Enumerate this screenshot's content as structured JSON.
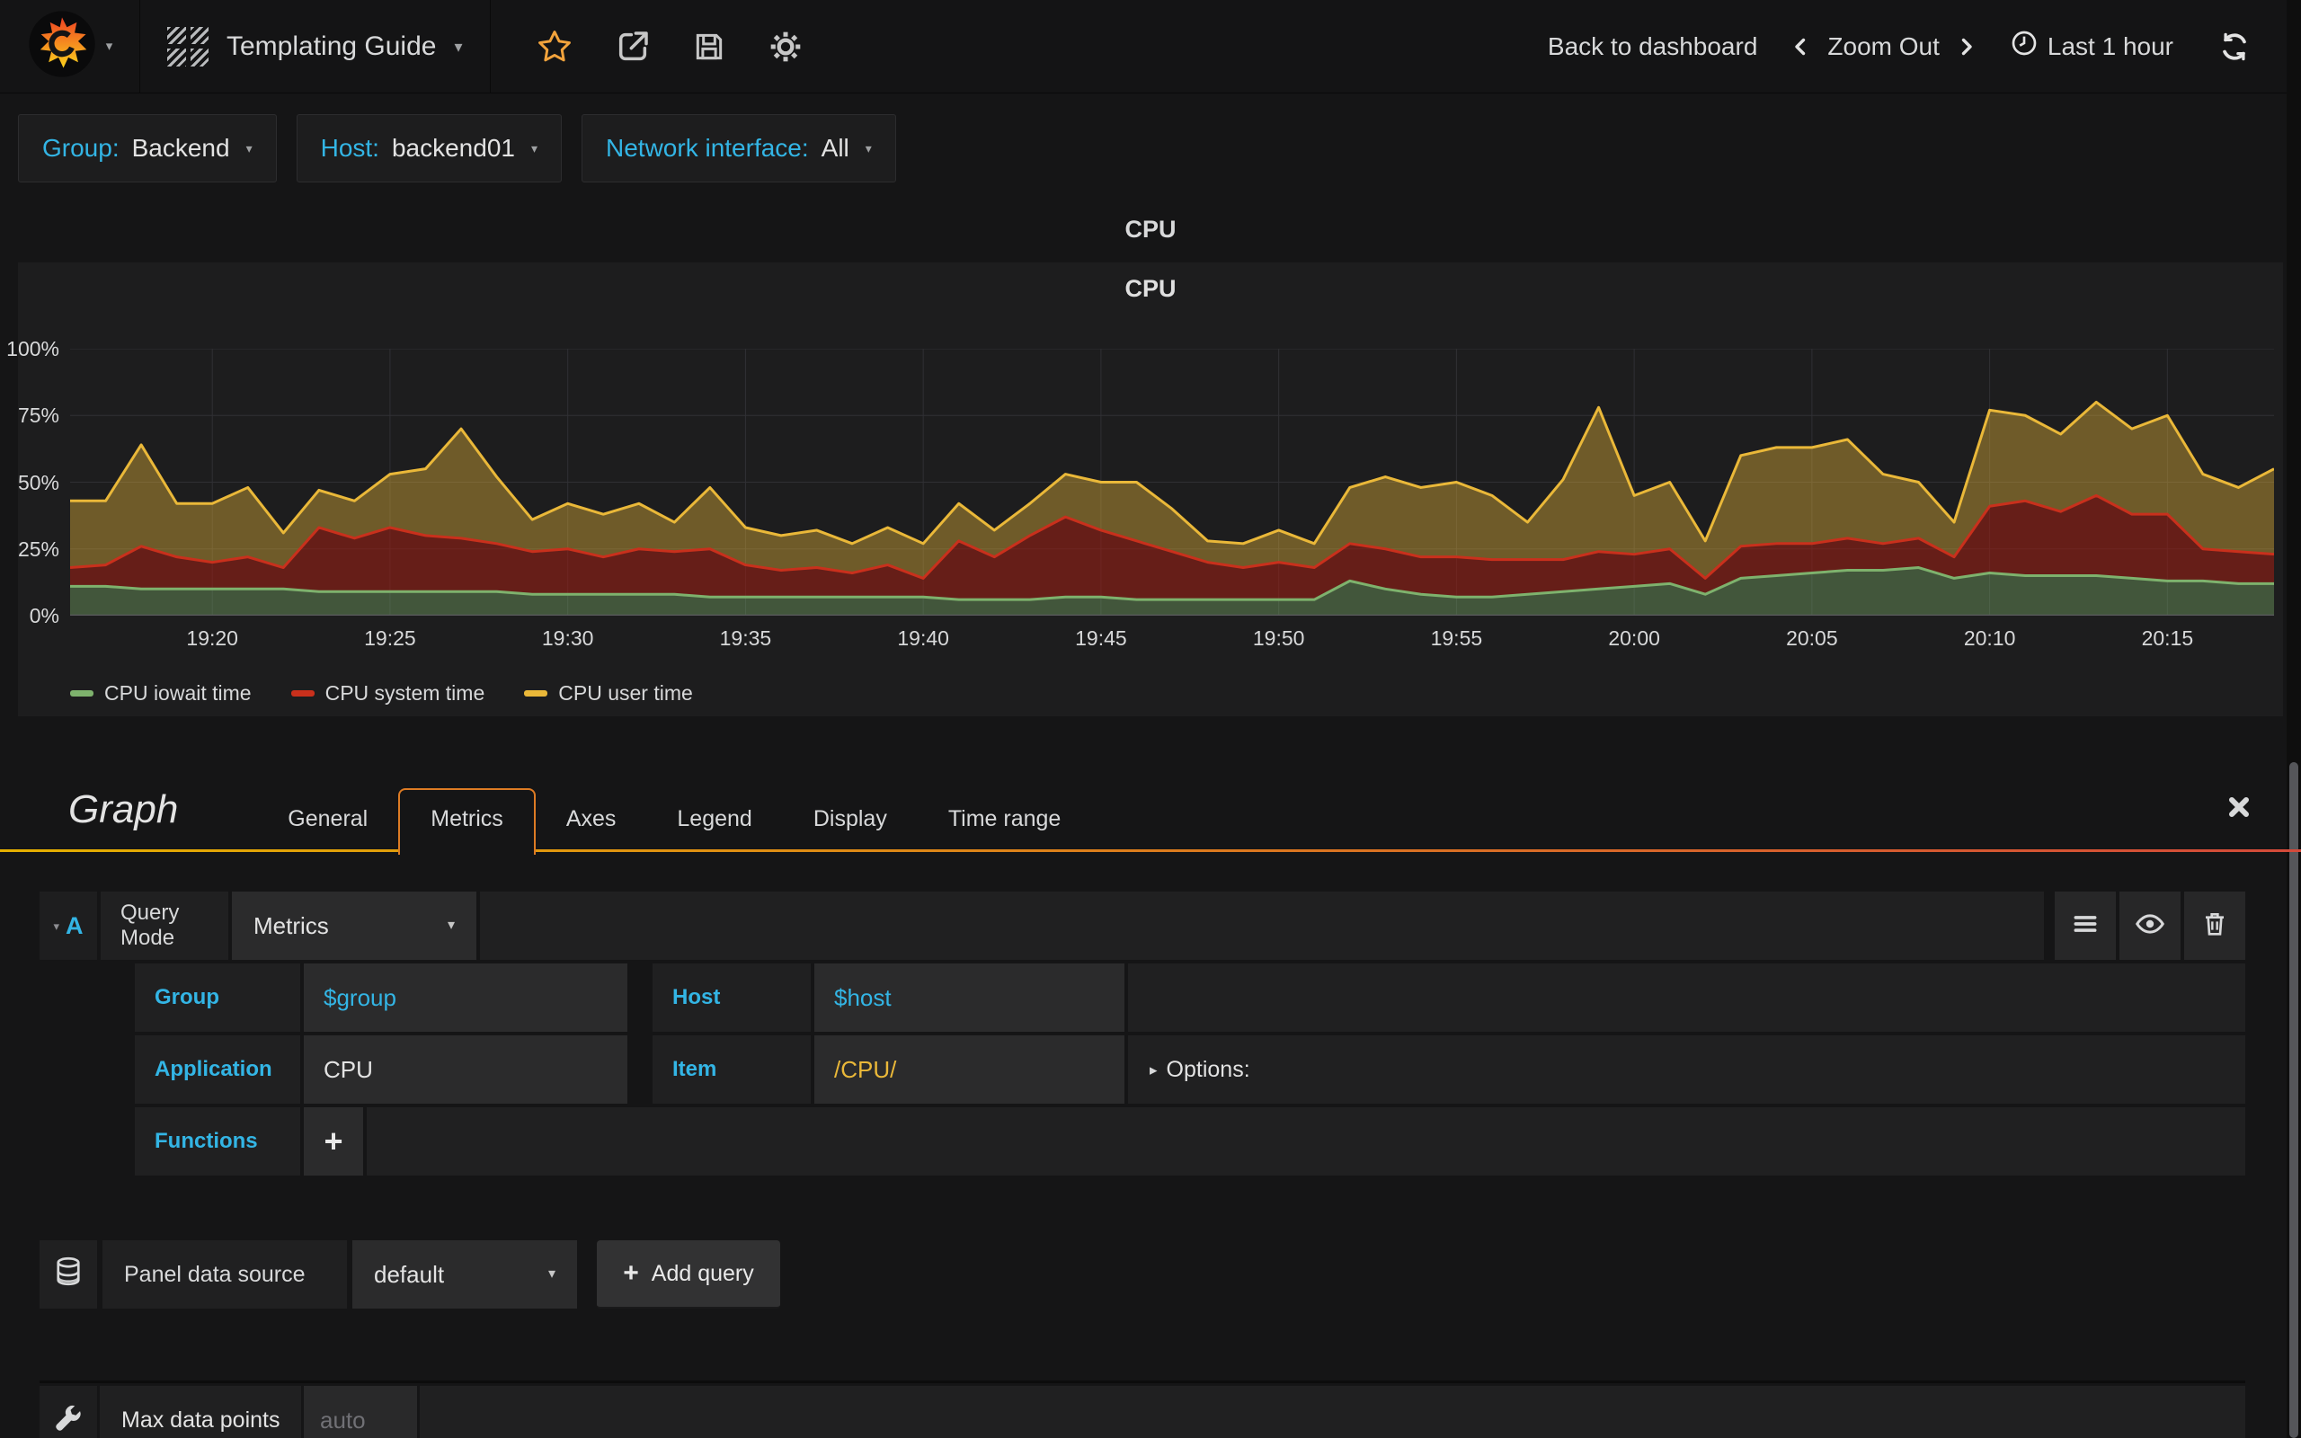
{
  "navbar": {
    "title": "Templating Guide",
    "back_to_dashboard": "Back to dashboard",
    "zoom_out": "Zoom Out",
    "time_range": "Last 1 hour"
  },
  "variables": [
    {
      "label": "Group:",
      "value": "Backend"
    },
    {
      "label": "Host:",
      "value": "backend01"
    },
    {
      "label": "Network interface:",
      "value": "All"
    }
  ],
  "panel": {
    "title": "CPU",
    "graph_title": "CPU"
  },
  "chart_data": {
    "type": "area",
    "stacked": true,
    "title": "CPU",
    "grid": true,
    "legend_position": "bottom",
    "ylim": [
      0,
      100
    ],
    "y_ticks": [
      "0%",
      "25%",
      "50%",
      "75%",
      "100%"
    ],
    "x_ticks": [
      "19:20",
      "19:25",
      "19:30",
      "19:35",
      "19:40",
      "19:45",
      "19:50",
      "19:55",
      "20:00",
      "20:05",
      "20:10",
      "20:15"
    ],
    "x": [
      "19:16",
      "19:17",
      "19:18",
      "19:19",
      "19:20",
      "19:21",
      "19:22",
      "19:23",
      "19:24",
      "19:25",
      "19:26",
      "19:27",
      "19:28",
      "19:29",
      "19:30",
      "19:31",
      "19:32",
      "19:33",
      "19:34",
      "19:35",
      "19:36",
      "19:37",
      "19:38",
      "19:39",
      "19:40",
      "19:41",
      "19:42",
      "19:43",
      "19:44",
      "19:45",
      "19:46",
      "19:47",
      "19:48",
      "19:49",
      "19:50",
      "19:51",
      "19:52",
      "19:53",
      "19:54",
      "19:55",
      "19:56",
      "19:57",
      "19:58",
      "19:59",
      "20:00",
      "20:01",
      "20:02",
      "20:03",
      "20:04",
      "20:05",
      "20:06",
      "20:07",
      "20:08",
      "20:09",
      "20:10",
      "20:11",
      "20:12",
      "20:13",
      "20:14",
      "20:15",
      "20:16",
      "20:17",
      "20:18"
    ],
    "series": [
      {
        "name": "CPU iowait time",
        "color": "#7EB26D",
        "fill": "rgba(126,178,109,0.38)",
        "values": [
          11,
          11,
          10,
          10,
          10,
          10,
          10,
          9,
          9,
          9,
          9,
          9,
          9,
          8,
          8,
          8,
          8,
          8,
          7,
          7,
          7,
          7,
          7,
          7,
          7,
          6,
          6,
          6,
          7,
          7,
          6,
          6,
          6,
          6,
          6,
          6,
          13,
          10,
          8,
          7,
          7,
          8,
          9,
          10,
          11,
          12,
          8,
          14,
          15,
          16,
          17,
          17,
          18,
          14,
          16,
          15,
          15,
          15,
          14,
          13,
          13,
          12,
          12
        ]
      },
      {
        "name": "CPU system time",
        "color": "#C9301C",
        "fill": "rgba(163,31,20,0.55)",
        "values": [
          7,
          8,
          16,
          12,
          10,
          12,
          8,
          24,
          20,
          24,
          21,
          20,
          18,
          16,
          17,
          14,
          17,
          16,
          18,
          12,
          10,
          11,
          9,
          12,
          7,
          22,
          16,
          24,
          30,
          25,
          22,
          18,
          14,
          12,
          14,
          12,
          14,
          15,
          14,
          15,
          14,
          13,
          12,
          14,
          12,
          13,
          6,
          12,
          12,
          11,
          12,
          10,
          11,
          8,
          25,
          28,
          24,
          30,
          24,
          25,
          12,
          12,
          11
        ]
      },
      {
        "name": "CPU user time",
        "color": "#EAB839",
        "fill": "rgba(234,184,57,0.40)",
        "values": [
          25,
          24,
          38,
          20,
          22,
          26,
          13,
          14,
          14,
          20,
          25,
          41,
          25,
          12,
          17,
          16,
          17,
          11,
          23,
          14,
          13,
          14,
          11,
          14,
          13,
          14,
          10,
          12,
          16,
          18,
          22,
          16,
          8,
          9,
          12,
          9,
          21,
          27,
          26,
          28,
          24,
          14,
          30,
          54,
          22,
          25,
          14,
          34,
          36,
          36,
          37,
          26,
          21,
          13,
          36,
          32,
          29,
          35,
          32,
          37,
          28,
          24,
          32
        ]
      }
    ]
  },
  "editor": {
    "panel_type_label": "Graph",
    "tabs": [
      "General",
      "Metrics",
      "Axes",
      "Legend",
      "Display",
      "Time range"
    ],
    "active_tab": "Metrics",
    "query": {
      "ref_letter": "A",
      "mode_label": "Query Mode",
      "mode_value": "Metrics",
      "group_label": "Group",
      "group_value": "$group",
      "host_label": "Host",
      "host_value": "$host",
      "application_label": "Application",
      "application_value": "CPU",
      "item_label": "Item",
      "item_value": "/CPU/",
      "options_label": "Options:",
      "functions_label": "Functions",
      "add_function_label": "+"
    },
    "datasource": {
      "label": "Panel data source",
      "value": "default",
      "add_query_plus": "+",
      "add_query_label": "Add query"
    },
    "max_data_points": {
      "label": "Max data points",
      "placeholder": "auto"
    }
  },
  "theme": {
    "accent_cyan": "#33B5E5",
    "accent_yellow": "#EAB839",
    "tab_active_border": "#DD7B24",
    "tab_underline_left": "#E5B000",
    "tab_underline_right": "#D44A3A"
  }
}
